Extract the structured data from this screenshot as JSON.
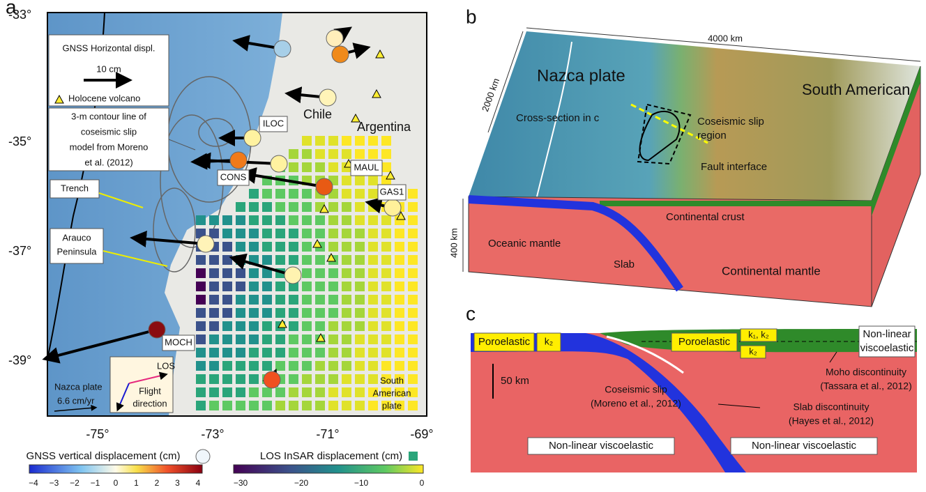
{
  "panel_a": {
    "label": "a",
    "lat_ticks": [
      "-33°",
      "-35°",
      "-37°",
      "-39°"
    ],
    "lon_ticks": [
      "-75°",
      "-73°",
      "-71°",
      "-69°"
    ],
    "legend": {
      "title": "GNSS Horizontal displ.",
      "scale": "10 cm",
      "volcano": "Holocene volcano"
    },
    "contour_note": [
      "3-m contour line of",
      "coseismic slip",
      "model from Moreno",
      "et al. (2012)"
    ],
    "trench": "Trench",
    "arauco": [
      "Arauco",
      "Peninsula"
    ],
    "stations": [
      "ILOC",
      "CONS",
      "MAUL",
      "GAS1",
      "MOCH"
    ],
    "places": [
      "Chile",
      "Argentina"
    ],
    "nazca": [
      "Nazca plate",
      "6.6 cm/yr"
    ],
    "south_american": [
      "South",
      "American",
      "plate"
    ],
    "los": "LOS",
    "flight": [
      "Flight",
      "direction"
    ],
    "gnss_bar": {
      "title": "GNSS vertical displacement (cm)",
      "ticks": [
        "−4",
        "−3",
        "−2",
        "−1",
        "0",
        "1",
        "2",
        "3",
        "4"
      ]
    },
    "insar_bar": {
      "title": "LOS InSAR displacement (cm)",
      "ticks": [
        "−30",
        "−20",
        "−10",
        "0"
      ]
    }
  },
  "panel_b": {
    "label": "b",
    "width": "4000 km",
    "depth": "2000 km",
    "height": "400 km",
    "nazca": "Nazca plate",
    "south_american": "South American",
    "cross_section": "Cross-section in c",
    "slip_region": [
      "Coseismic slip",
      "region"
    ],
    "fault": "Fault interface",
    "crust": "Continental crust",
    "oceanic": "Oceanic mantle",
    "slab": "Slab",
    "continental": "Continental mantle"
  },
  "panel_c": {
    "label": "c",
    "poro_left": "Poroelastic",
    "k_left": "k₂",
    "poro_right": "Poroelastic",
    "k_top": "k₁, k₂",
    "k_bottom": "k₂",
    "visco_top": [
      "Non-linear",
      "viscoelastic"
    ],
    "scale": "50 km",
    "slip": [
      "Coseismic slip",
      "(Moreno et al., 2012)"
    ],
    "slab": [
      "Slab discontinuity",
      "(Hayes et al., 2012)"
    ],
    "moho": [
      "Moho discontinuity",
      "(Tassara et al., 2012)"
    ],
    "visco_left": "Non-linear viscoelastic",
    "visco_right": "Non-linear viscoelastic"
  }
}
